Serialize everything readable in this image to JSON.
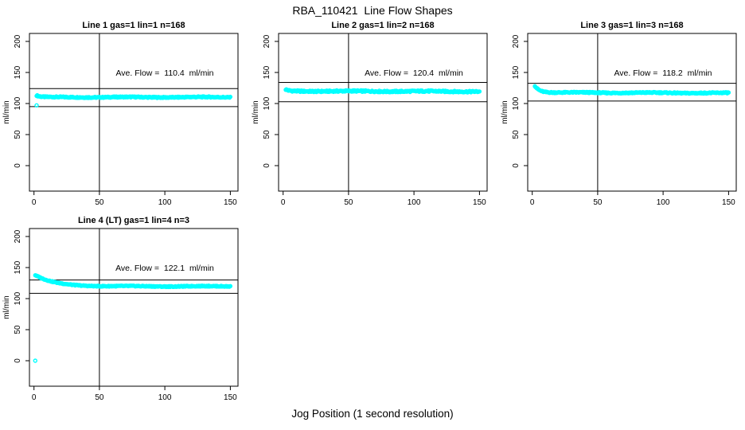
{
  "chart_data": {
    "type": "scatter",
    "title": "RBA_110421  Line Flow Shapes",
    "xlabel": "Jog Position (1 second resolution)",
    "ylabel": "ml/min",
    "point_color": "#00ffff",
    "line_color": "#000000",
    "grid": false,
    "legend": "none",
    "x_ticks": [
      0,
      50,
      100,
      150
    ],
    "y_ticks": [
      0,
      50,
      100,
      150,
      200
    ],
    "xlim": [
      -4,
      156
    ],
    "ylim": [
      -33,
      235
    ],
    "vline_x": 50,
    "panels": [
      {
        "title": "Line 1 gas=1 lin=1 n=168",
        "gas": 1,
        "lin": 1,
        "n": 168,
        "ave_flow_ml_min": 110.4,
        "ave_label": "Ave. Flow =  110.4  ml/min",
        "hlines": [
          124,
          95
        ],
        "shape": {
          "x_start": 2,
          "x_end": 150,
          "start": 113,
          "settle": 110.2,
          "tau": 2.5,
          "noise": 0.9,
          "slope": 0
        },
        "extra_points": [
          [
            2,
            97
          ]
        ]
      },
      {
        "title": "Line 2 gas=1 lin=2 n=168",
        "gas": 1,
        "lin": 2,
        "n": 168,
        "ave_flow_ml_min": 120.4,
        "ave_label": "Ave. Flow =  120.4  ml/min",
        "hlines": [
          134,
          103
        ],
        "shape": {
          "x_start": 2,
          "x_end": 150,
          "start": 122.5,
          "settle": 120,
          "tau": 2,
          "noise": 1.2,
          "slope": -0.004
        },
        "extra_points": []
      },
      {
        "title": "Line 3 gas=1 lin=3 n=168",
        "gas": 1,
        "lin": 3,
        "n": 168,
        "ave_flow_ml_min": 118.2,
        "ave_label": "Ave. Flow =  118.2  ml/min",
        "hlines": [
          132.5,
          104
        ],
        "shape": {
          "x_start": 2,
          "x_end": 150,
          "start": 129,
          "settle": 117.8,
          "tau": 3.5,
          "noise": 0.9,
          "slope": -0.006
        },
        "extra_points": []
      },
      {
        "title": "Line 4 (LT) gas=1 lin=4 n=3",
        "gas": 1,
        "lin": 4,
        "n": 3,
        "ave_flow_ml_min": 122.1,
        "ave_label": "Ave. Flow =  122.1  ml/min",
        "hlines": [
          130,
          108.5
        ],
        "shape": {
          "x_start": 1,
          "x_end": 150,
          "start": 138,
          "settle": 119.8,
          "tau": 14,
          "noise": 0.7,
          "slope": 0
        },
        "extra_points": [
          [
            1,
            0
          ]
        ]
      }
    ]
  }
}
